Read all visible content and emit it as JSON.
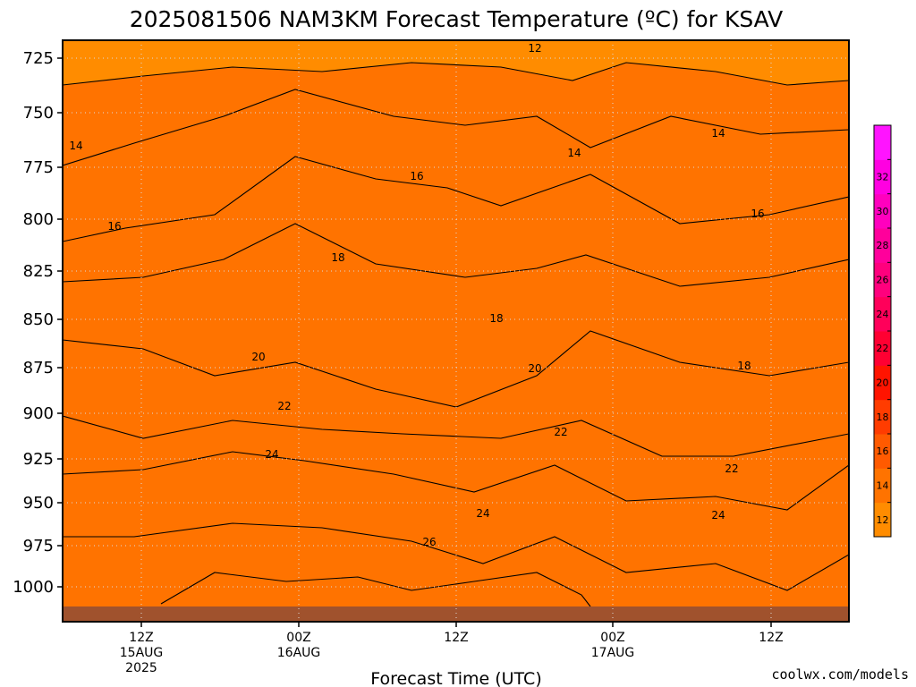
{
  "chart_data": {
    "type": "heatmap",
    "title": "2025081506 NAM3KM Forecast Temperature (ºC) for KSAV",
    "xlabel": "Forecast Time (UTC)",
    "ylabel": "",
    "y_ticks": [
      "725",
      "750",
      "775",
      "800",
      "825",
      "850",
      "875",
      "900",
      "925",
      "950",
      "975",
      "1000"
    ],
    "x_ticks": [
      {
        "line1": "12Z",
        "line2": "15AUG",
        "line3": "2025"
      },
      {
        "line1": "00Z",
        "line2": "16AUG",
        "line3": ""
      },
      {
        "line1": "12Z",
        "line2": "",
        "line3": ""
      },
      {
        "line1": "00Z",
        "line2": "17AUG",
        "line3": ""
      },
      {
        "line1": "12Z",
        "line2": "",
        "line3": ""
      }
    ],
    "colorbar": {
      "labels": [
        "12",
        "14",
        "16",
        "18",
        "20",
        "22",
        "24",
        "26",
        "28",
        "30",
        "32"
      ],
      "colors": [
        "#ff8c00",
        "#ff7300",
        "#ff5a00",
        "#ff3c00",
        "#ff1400",
        "#ff0032",
        "#ff005a",
        "#ff007d",
        "#ff009b",
        "#ff00be",
        "#ff00e1",
        "#ff14ff"
      ]
    },
    "contour_labels": [
      {
        "text": "12"
      },
      {
        "text": "14"
      },
      {
        "text": "14"
      },
      {
        "text": "14"
      },
      {
        "text": "16"
      },
      {
        "text": "16"
      },
      {
        "text": "16"
      },
      {
        "text": "18"
      },
      {
        "text": "18"
      },
      {
        "text": "18"
      },
      {
        "text": "20"
      },
      {
        "text": "20"
      },
      {
        "text": "22"
      },
      {
        "text": "22"
      },
      {
        "text": "22"
      },
      {
        "text": "24"
      },
      {
        "text": "24"
      },
      {
        "text": "24"
      },
      {
        "text": "26"
      }
    ],
    "grid": true,
    "credit": "coolwx.com/models"
  }
}
